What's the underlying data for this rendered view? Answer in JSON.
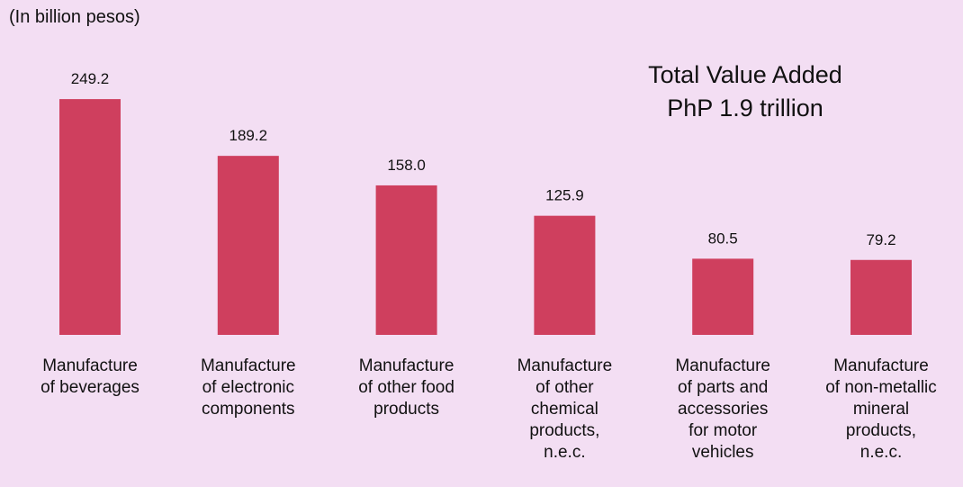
{
  "chart_data": {
    "type": "bar",
    "title": "Total Value Added",
    "subtitle": "PhP 1.9 trillion",
    "unit_label": "(In billion pesos)",
    "categories": [
      "Manufacture\nof beverages",
      "Manufacture\nof electronic\ncomponents",
      "Manufacture\nof other food\nproducts",
      "Manufacture\nof other\nchemical\nproducts,\nn.e.c.",
      "Manufacture\nof parts and\naccessories\nfor motor\nvehicles",
      "Manufacture\nof non-metallic\nmineral\nproducts,\nn.e.c."
    ],
    "values": [
      249.2,
      189.2,
      158.0,
      125.9,
      80.5,
      79.2
    ],
    "value_labels": [
      "249.2",
      "189.2",
      "158.0",
      "125.9",
      "80.5",
      "79.2"
    ],
    "color": "#cf3f5e"
  }
}
